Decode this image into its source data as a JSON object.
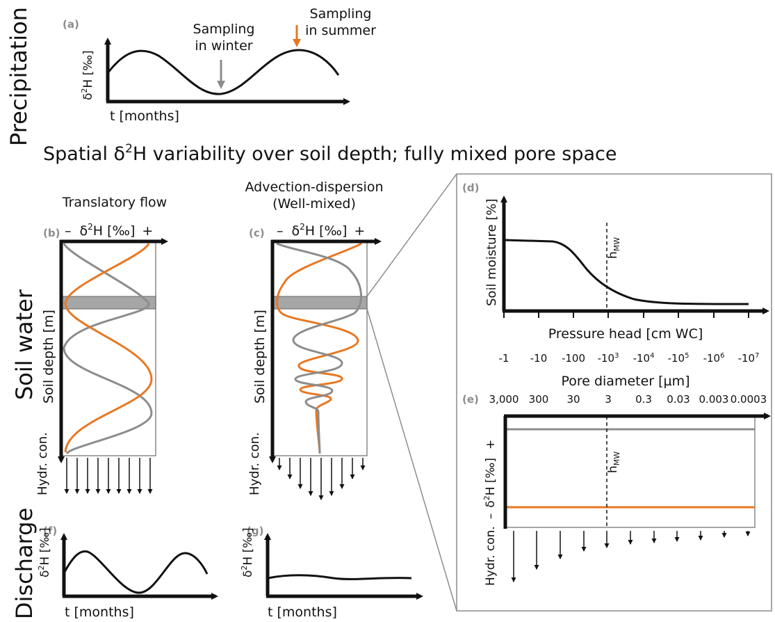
{
  "colors": {
    "orange": "#E87722",
    "gray": "#8C8C8C",
    "black": "#111111",
    "box": "#888888"
  },
  "row_labels": {
    "precipitation": "Precipitation",
    "soil_water": "Soil water",
    "discharge": "Discharge"
  },
  "heading": {
    "pre": "Spatial ",
    "delta": "δ",
    "sup": "2",
    "post": "H variability over soil depth; fully mixed pore space"
  },
  "panel_a": {
    "label": "(a)",
    "ylabel_delta": "δ",
    "ylabel_sup": "2",
    "ylabel_post": "H [‰]",
    "xlabel": "t [months]",
    "winter_line1": "Sampling",
    "winter_line2": "in winter",
    "summer_line1": "Sampling",
    "summer_line2": "in summer"
  },
  "panel_b": {
    "label": "(b)",
    "title": "Translatory flow",
    "minus": "–",
    "axis_delta": "δ",
    "axis_sup": "2",
    "axis_post": "H [‰]",
    "plus": "+",
    "ylabel": "Soil depth [m]",
    "hydr": "Hydr. con."
  },
  "panel_c": {
    "label": "(c)",
    "title_line1": "Advection-dispersion",
    "title_line2": "(Well-mixed)",
    "minus": "–",
    "axis_delta": "δ",
    "axis_sup": "2",
    "axis_post": "H [‰]",
    "plus": "+",
    "ylabel": "Soil depth [m]",
    "hydr": "Hydr. con."
  },
  "panel_d": {
    "label": "(d)",
    "ylabel": "Soil moisture [%]",
    "xlabel": "Pressure head [cm WC]",
    "hmw_main": "h",
    "hmw_sub": "MW",
    "ticks": [
      {
        "base": "-1",
        "exp": ""
      },
      {
        "base": "-10",
        "exp": ""
      },
      {
        "base": "-100",
        "exp": ""
      },
      {
        "base": "-10",
        "exp": "3"
      },
      {
        "base": "-10",
        "exp": "4"
      },
      {
        "base": "-10",
        "exp": "5"
      },
      {
        "base": "-10",
        "exp": "6"
      },
      {
        "base": "-10",
        "exp": "7"
      }
    ]
  },
  "panel_e": {
    "label": "(e)",
    "xlabel": "Pore diameter [µm]",
    "ticks": [
      "3,000",
      "300",
      "30",
      "3",
      "0.3",
      "0.03",
      "0.003",
      "0.0003"
    ],
    "hmw_main": "h",
    "hmw_sub": "MW",
    "y_hydr": "Hydr. con.",
    "y_minus": "–",
    "y_delta": "δ",
    "y_sup": "2",
    "y_post": "H [‰]",
    "y_plus": "+"
  },
  "panel_f": {
    "label": "(f)",
    "ylabel_delta": "δ",
    "ylabel_sup": "2",
    "ylabel_post": "H [‰]",
    "xlabel": "t [months]"
  },
  "panel_g": {
    "label": "(g)",
    "ylabel_delta": "δ",
    "ylabel_sup": "2",
    "ylabel_post": "H [‰]",
    "xlabel": "t [months]"
  }
}
